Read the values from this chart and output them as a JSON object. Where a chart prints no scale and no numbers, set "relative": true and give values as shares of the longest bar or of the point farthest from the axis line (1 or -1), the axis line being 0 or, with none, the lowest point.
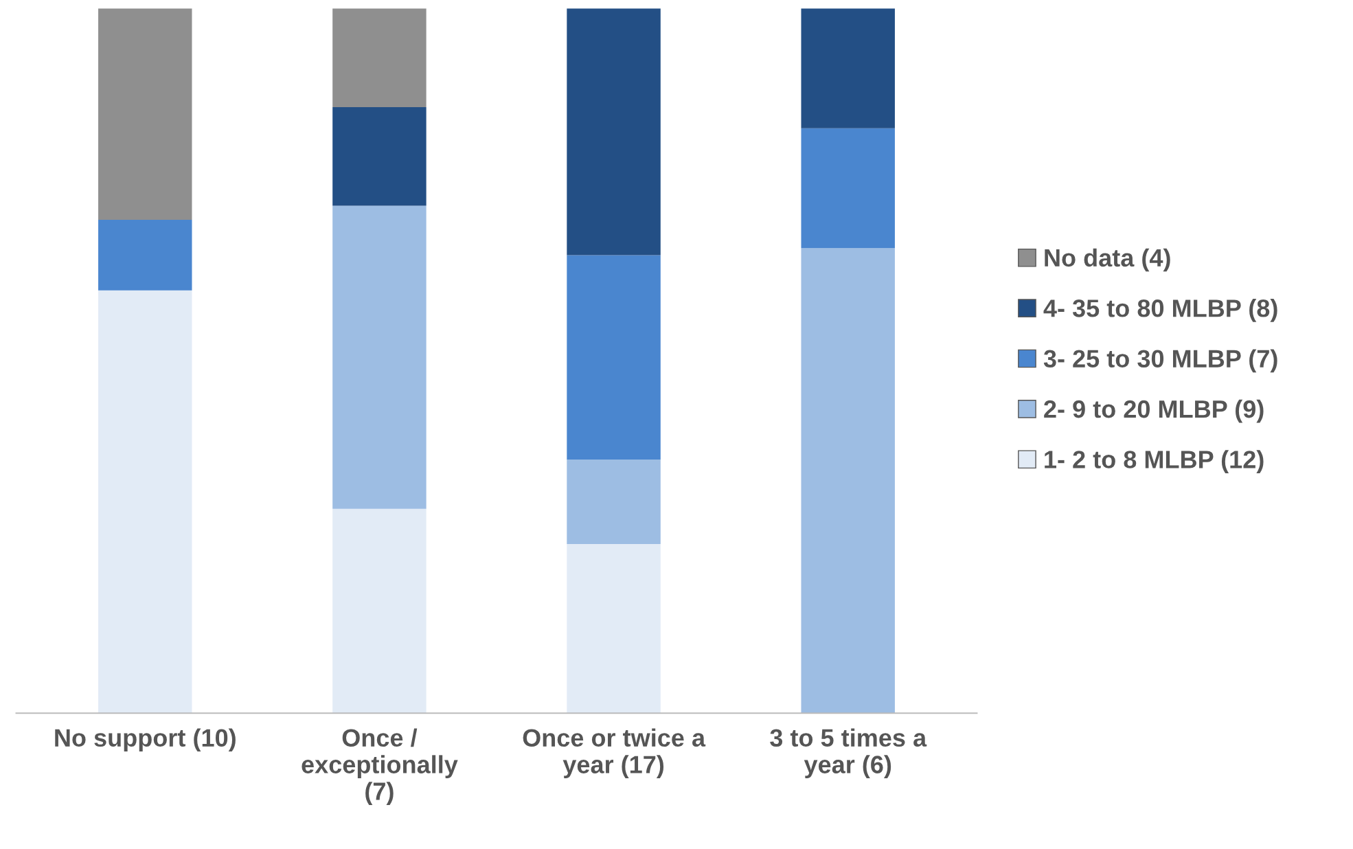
{
  "chart_data": {
    "type": "bar",
    "stacked": true,
    "relative": true,
    "categories": [
      "No support (10)",
      "Once /\nexceptionally\n(7)",
      "Once or twice a\nyear (17)",
      "3 to 5 times a\nyear (6)"
    ],
    "series": [
      {
        "name": "1- 2 to 8 MLBP (12)",
        "color": "#e2ebf6",
        "values": [
          0.6,
          0.29,
          0.24,
          null
        ]
      },
      {
        "name": "2- 9 to 20 MLBP (9)",
        "color": "#9dbde3",
        "values": [
          null,
          0.43,
          0.12,
          0.66
        ]
      },
      {
        "name": "3- 25 to 30 MLBP (7)",
        "color": "#4a86cf",
        "values": [
          0.1,
          null,
          0.29,
          0.17
        ]
      },
      {
        "name": "4- 35 to 80 MLBP (8)",
        "color": "#234f85",
        "values": [
          null,
          0.14,
          0.35,
          0.17
        ]
      },
      {
        "name": "No data (4)",
        "color": "#8f8f8f",
        "values": [
          0.3,
          0.14,
          null,
          null
        ]
      }
    ],
    "legend": "right",
    "grid": false
  }
}
